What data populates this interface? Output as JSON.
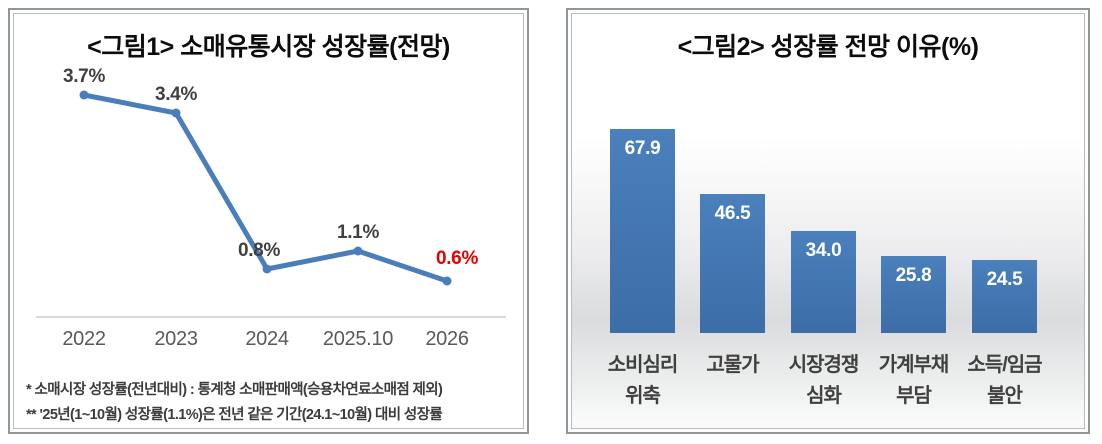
{
  "chart_data": [
    {
      "id": "figure1",
      "type": "line",
      "title": "<그림1> 소매유통시장 성장률(전망)",
      "categories": [
        "2022",
        "2023",
        "2024",
        "2025.10",
        "2026"
      ],
      "values": [
        3.7,
        3.4,
        0.8,
        1.1,
        0.6
      ],
      "point_labels": [
        "3.7%",
        "3.4%",
        "0.8%",
        "1.1%",
        "0.6%"
      ],
      "point_label_colors": [
        "#404040",
        "#404040",
        "#404040",
        "#404040",
        "#e60000"
      ],
      "line_color": "#4a7ebb",
      "marker_color": "#4a7ebb",
      "axis_line_color": "#d9d9d9",
      "tick_label_color": "#595959",
      "ylim": [
        0,
        4.2
      ],
      "grid": false,
      "legend": false,
      "footnotes": [
        "* 소매시장 성장률(전년대비) : 통계청 소매판매액(승용차연료소매점 제외)",
        "** '25년(1~10월) 성장률(1.1%)은 전년 같은 기간(24.1~10월) 대비 성장률"
      ]
    },
    {
      "id": "figure2",
      "type": "bar",
      "title": "<그림2> 성장률 전망 이유(%)",
      "categories": [
        "소비심리 위축",
        "고물가",
        "시장경쟁 심화",
        "가계부채 부담",
        "소득/임금 불안"
      ],
      "category_lines": [
        [
          "소비심리",
          "위축"
        ],
        [
          "고물가"
        ],
        [
          "시장경쟁",
          "심화"
        ],
        [
          "가계부채",
          "부담"
        ],
        [
          "소득/임금",
          "불안"
        ]
      ],
      "values": [
        67.9,
        46.5,
        34.0,
        25.8,
        24.5
      ],
      "value_labels": [
        "67.9",
        "46.5",
        "34.0",
        "25.8",
        "24.5"
      ],
      "bar_color_top": "#4a80bc",
      "bar_color_bottom": "#3c6da7",
      "value_label_color": "#ffffff",
      "category_label_color": "#404040",
      "ylim": [
        0,
        80
      ],
      "grid": false,
      "legend": false
    }
  ]
}
